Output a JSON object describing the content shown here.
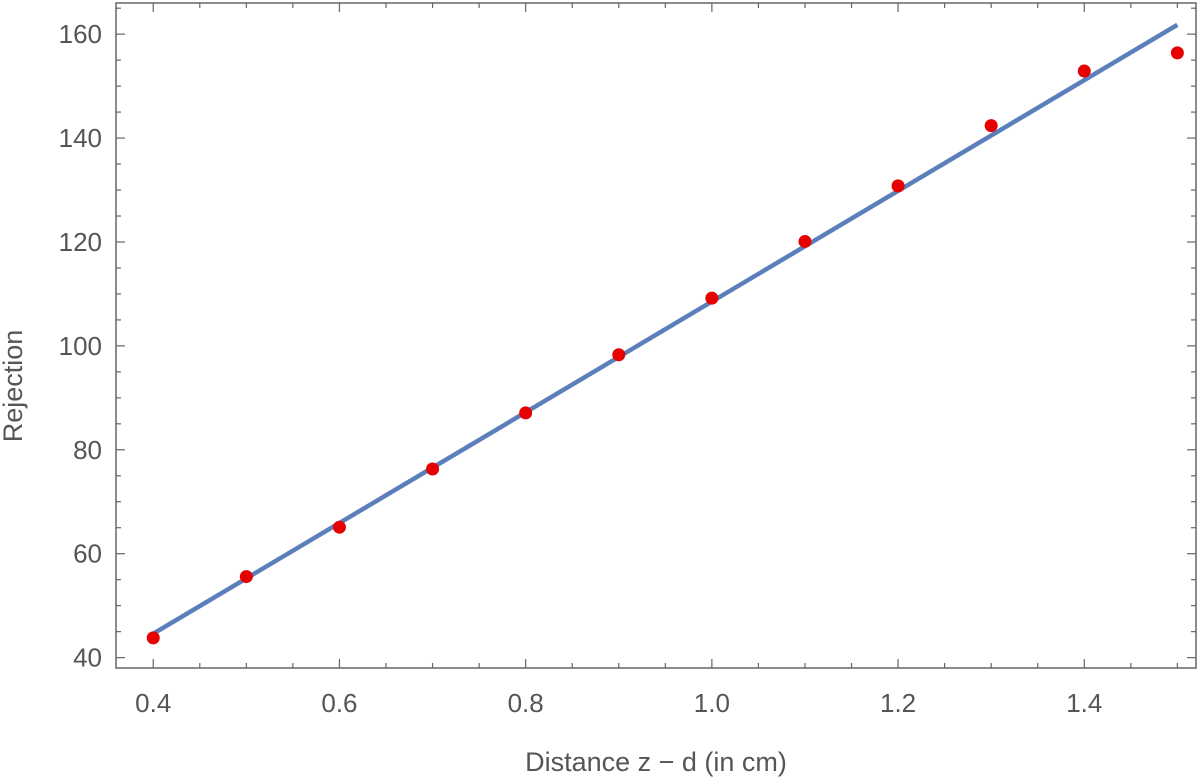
{
  "chart_data": {
    "type": "scatter",
    "title": "",
    "xlabel": "Distance z − d (in cm)",
    "ylabel": "Rejection",
    "xlim": [
      0.36,
      1.52
    ],
    "ylim": [
      38,
      166
    ],
    "x_ticks": [
      0.4,
      0.6,
      0.8,
      1.0,
      1.2,
      1.4
    ],
    "x_tick_labels": [
      "0.4",
      "0.6",
      "0.8",
      "1.0",
      "1.2",
      "1.4"
    ],
    "y_ticks": [
      40,
      60,
      80,
      100,
      120,
      140,
      160
    ],
    "y_tick_labels": [
      "40",
      "60",
      "80",
      "100",
      "120",
      "140",
      "160"
    ],
    "grid": false,
    "series": [
      {
        "kind": "points",
        "color": "#e60000",
        "x": [
          0.4,
          0.5,
          0.6,
          0.7,
          0.8,
          0.9,
          1.0,
          1.1,
          1.2,
          1.3,
          1.4,
          1.5
        ],
        "y": [
          43.8,
          55.6,
          65.1,
          76.3,
          87.1,
          98.3,
          109.2,
          120.1,
          130.8,
          142.4,
          152.9,
          156.4
        ]
      },
      {
        "kind": "fit-line",
        "color": "#5b7fba",
        "x": [
          0.4,
          1.5
        ],
        "y": [
          44.6,
          161.8
        ]
      }
    ]
  }
}
